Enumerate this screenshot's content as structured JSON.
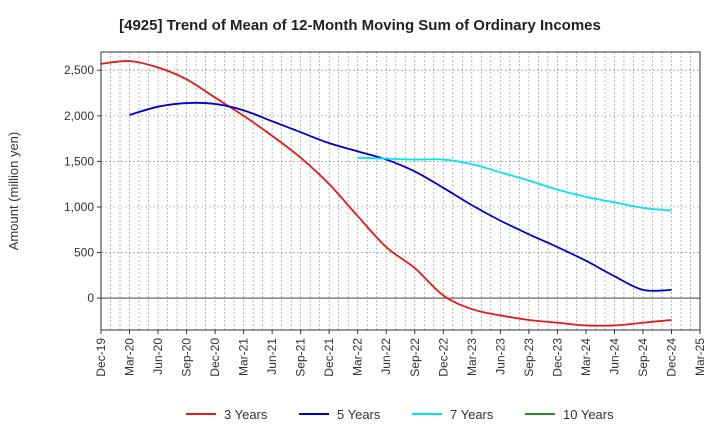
{
  "chart_data": {
    "type": "line",
    "title": "[4925]  Trend of Mean of 12-Month Moving Sum of Ordinary Incomes",
    "ylabel": "Amount (million yen)",
    "xlabel": "",
    "ylim": [
      -350,
      2700
    ],
    "yticks": [
      0,
      500,
      1000,
      1500,
      2000,
      2500
    ],
    "ytick_labels": [
      "0",
      "500",
      "1,000",
      "1,500",
      "2,000",
      "2,500"
    ],
    "x_tick_labels": [
      "Dec-19",
      "Mar-20",
      "Jun-20",
      "Sep-20",
      "Dec-20",
      "Mar-21",
      "Jun-21",
      "Sep-21",
      "Dec-21",
      "Mar-22",
      "Jun-22",
      "Sep-22",
      "Dec-22",
      "Mar-23",
      "Jun-23",
      "Sep-23",
      "Dec-23",
      "Mar-24",
      "Jun-24",
      "Sep-24",
      "Dec-24",
      "Mar-25"
    ],
    "grid": true,
    "legend_position": "bottom",
    "series": [
      {
        "name": "3 Years",
        "color": "#e31a1c",
        "x": [
          0,
          1,
          2,
          3,
          4,
          5,
          6,
          7,
          8,
          9,
          10,
          11,
          12,
          13,
          14,
          15,
          16,
          17,
          18,
          19,
          20
        ],
        "values": [
          2570,
          2600,
          2530,
          2400,
          2200,
          2000,
          1780,
          1540,
          1250,
          900,
          560,
          330,
          30,
          -120,
          -190,
          -240,
          -270,
          -300,
          -300,
          -270,
          -240
        ]
      },
      {
        "name": "5 Years",
        "color": "#0000cc",
        "x": [
          1,
          2,
          3,
          4,
          5,
          6,
          7,
          8,
          9,
          10,
          11,
          12,
          13,
          14,
          15,
          16,
          17,
          18,
          19,
          20
        ],
        "values": [
          2010,
          2100,
          2140,
          2130,
          2060,
          1940,
          1820,
          1700,
          1610,
          1520,
          1390,
          1210,
          1020,
          850,
          700,
          560,
          410,
          240,
          90,
          90
        ]
      },
      {
        "name": "7 Years",
        "color": "#00e5ee",
        "x": [
          9,
          10,
          11,
          12,
          13,
          14,
          15,
          16,
          17,
          18,
          19,
          20
        ],
        "values": [
          1540,
          1530,
          1520,
          1520,
          1470,
          1380,
          1290,
          1190,
          1110,
          1050,
          990,
          960
        ]
      },
      {
        "name": "10 Years",
        "color": "#2e8b2e",
        "x": [],
        "values": []
      }
    ]
  }
}
